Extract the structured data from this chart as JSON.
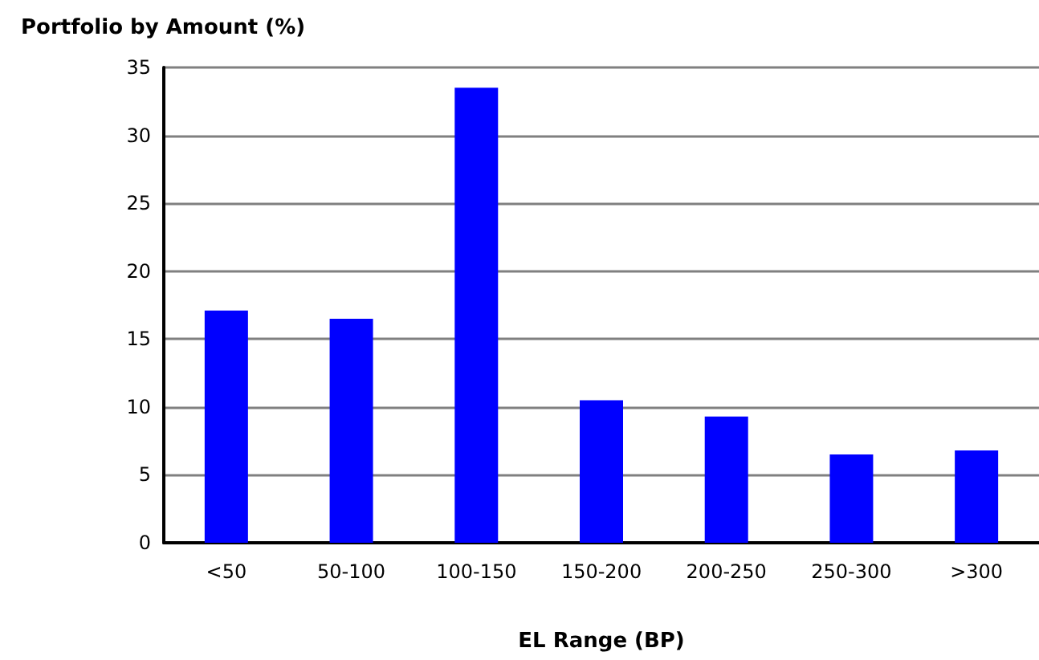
{
  "chart_data": {
    "type": "bar",
    "title": "Portfolio by Amount (%)",
    "xlabel": "EL Range (BP)",
    "categories": [
      "<50",
      "50-100",
      "100-150",
      "150-200",
      "200-250",
      "250-300",
      ">300"
    ],
    "values": [
      17.1,
      16.5,
      33.5,
      10.5,
      9.3,
      6.5,
      6.8
    ],
    "color": "#0000ff",
    "ylim": [
      0,
      35
    ],
    "yticks": [
      0,
      5,
      10,
      15,
      20,
      25,
      30,
      35
    ],
    "grid": "y"
  }
}
